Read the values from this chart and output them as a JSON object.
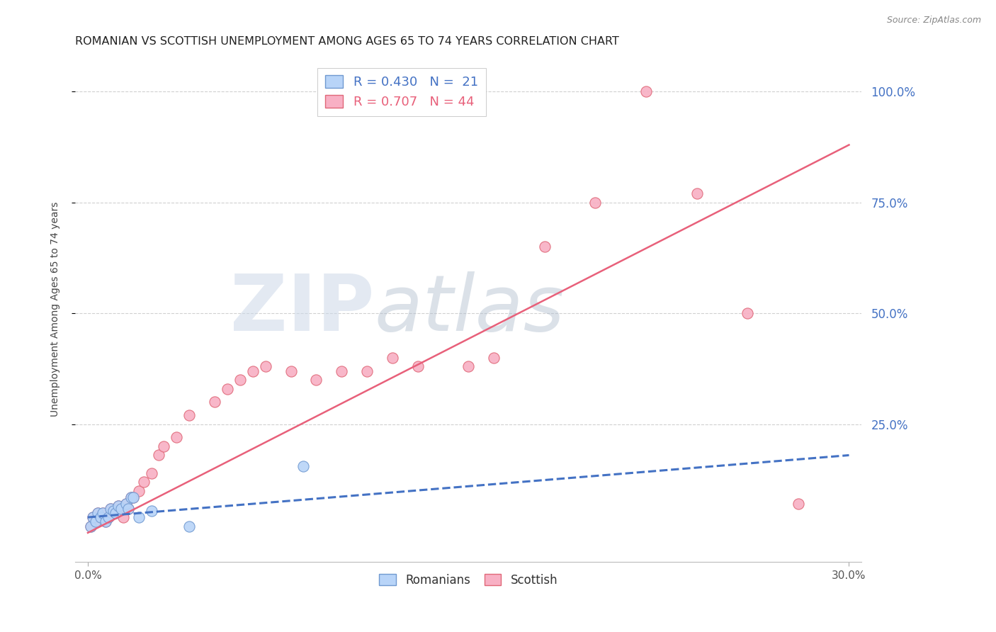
{
  "title": "ROMANIAN VS SCOTTISH UNEMPLOYMENT AMONG AGES 65 TO 74 YEARS CORRELATION CHART",
  "source": "Source: ZipAtlas.com",
  "ylabel": "Unemployment Among Ages 65 to 74 years",
  "ytick_labels": [
    "100.0%",
    "75.0%",
    "50.0%",
    "25.0%"
  ],
  "ytick_values": [
    1.0,
    0.75,
    0.5,
    0.25
  ],
  "background_color": "#ffffff",
  "grid_color": "#d0d0d0",
  "legend_entries": [
    {
      "label": "R = 0.430   N =  21",
      "color": "#a8c8f8"
    },
    {
      "label": "R = 0.707   N = 44",
      "color": "#f8a0b8"
    }
  ],
  "romanian_scatter_x": [
    0.001,
    0.002,
    0.003,
    0.004,
    0.005,
    0.006,
    0.007,
    0.008,
    0.009,
    0.01,
    0.011,
    0.012,
    0.013,
    0.015,
    0.016,
    0.017,
    0.018,
    0.02,
    0.025,
    0.04,
    0.085
  ],
  "romanian_scatter_y": [
    0.02,
    0.04,
    0.03,
    0.05,
    0.04,
    0.05,
    0.03,
    0.04,
    0.06,
    0.055,
    0.05,
    0.065,
    0.06,
    0.07,
    0.06,
    0.085,
    0.085,
    0.04,
    0.055,
    0.02,
    0.155
  ],
  "scottish_scatter_x": [
    0.001,
    0.002,
    0.003,
    0.004,
    0.005,
    0.006,
    0.007,
    0.008,
    0.009,
    0.01,
    0.011,
    0.012,
    0.013,
    0.014,
    0.015,
    0.016,
    0.017,
    0.018,
    0.02,
    0.022,
    0.025,
    0.028,
    0.03,
    0.035,
    0.04,
    0.05,
    0.055,
    0.06,
    0.065,
    0.07,
    0.08,
    0.09,
    0.1,
    0.11,
    0.12,
    0.13,
    0.15,
    0.16,
    0.18,
    0.2,
    0.22,
    0.24,
    0.26,
    0.28
  ],
  "scottish_scatter_y": [
    0.02,
    0.04,
    0.03,
    0.05,
    0.04,
    0.05,
    0.03,
    0.04,
    0.06,
    0.055,
    0.05,
    0.065,
    0.06,
    0.04,
    0.07,
    0.06,
    0.085,
    0.085,
    0.1,
    0.12,
    0.14,
    0.18,
    0.2,
    0.22,
    0.27,
    0.3,
    0.33,
    0.35,
    0.37,
    0.38,
    0.37,
    0.35,
    0.37,
    0.37,
    0.4,
    0.38,
    0.38,
    0.4,
    0.65,
    0.75,
    1.0,
    0.77,
    0.5,
    0.07
  ],
  "romanian_line_x": [
    0.0,
    0.3
  ],
  "romanian_line_y": [
    0.04,
    0.18
  ],
  "scottish_line_x": [
    0.0,
    0.3
  ],
  "scottish_line_y": [
    0.005,
    0.88
  ],
  "romanian_line_color": "#4472c4",
  "romanian_line_style": "--",
  "scottish_line_color": "#e8607a",
  "scottish_line_style": "-",
  "scatter_romanian_color": "#b8d4f8",
  "scatter_romanian_edge": "#7099d0",
  "scatter_scottish_color": "#f8b0c4",
  "scatter_scottish_edge": "#e06878",
  "scatter_size": 120,
  "xlim": [
    -0.005,
    0.305
  ],
  "ylim": [
    -0.06,
    1.08
  ],
  "title_color": "#222222",
  "axis_label_color": "#444444",
  "tick_color_right": "#4472c4",
  "title_fontsize": 11.5,
  "label_fontsize": 10,
  "source_fontsize": 9
}
